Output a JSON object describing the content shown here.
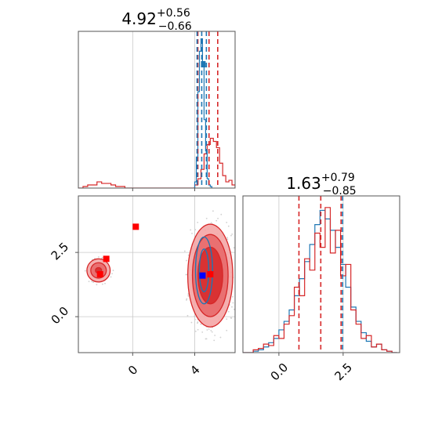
{
  "colors": {
    "red": "#d62728",
    "red_fill_light": "#f4a6a6",
    "red_fill_mid": "#e8696a",
    "blue": "#1f77b4",
    "marker_blue": "#0000ff",
    "marker_red": "#ff0000",
    "grid": "#c8c8c8",
    "frame": "#555555",
    "scatter": "#d0d0d0"
  },
  "chart_data": [
    {
      "type": "histogram",
      "panel": "top-left marginal",
      "title": {
        "base": "4.92",
        "upper": "+0.56",
        "lower": "−0.66"
      },
      "xlim": [
        -3.5,
        6.6
      ],
      "quantile_lines": {
        "red": [
          4.2,
          4.92,
          5.48
        ],
        "blue": [
          4.15,
          4.45,
          4.75
        ]
      },
      "series": [
        {
          "color": "red",
          "x": [
            -3.5,
            -3.2,
            -2.9,
            -2.6,
            -2.3,
            -2.0,
            -1.7,
            -1.4,
            -1.1,
            -0.8,
            -0.5,
            -0.2,
            0.1,
            0.4,
            0.7,
            1.0,
            1.3,
            1.6,
            1.9,
            2.2,
            2.5,
            2.8,
            3.1,
            3.4,
            3.7,
            4.0,
            4.2,
            4.4,
            4.6,
            4.8,
            5.0,
            5.2,
            5.4,
            5.6,
            5.8,
            6.0,
            6.2,
            6.4,
            6.6
          ],
          "y": [
            0,
            0.01,
            0.02,
            0.02,
            0.04,
            0.03,
            0.03,
            0.02,
            0.01,
            0.01,
            0,
            0,
            0,
            0,
            0,
            0,
            0,
            0,
            0,
            0,
            0,
            0,
            0,
            0,
            0,
            0.02,
            0.06,
            0.12,
            0.22,
            0.28,
            0.32,
            0.3,
            0.26,
            0.16,
            0.08,
            0.04,
            0.05,
            0.02,
            0
          ]
        },
        {
          "color": "blue",
          "x": [
            3.9,
            4.0,
            4.1,
            4.2,
            4.3,
            4.4,
            4.5,
            4.6,
            4.7,
            4.8,
            4.9,
            5.0,
            5.1
          ],
          "y": [
            0,
            0.04,
            0.2,
            0.62,
            0.88,
            0.96,
            0.78,
            0.44,
            0.24,
            0.06,
            0.02,
            0.01,
            0
          ]
        }
      ],
      "markers": [
        {
          "x": 4.55,
          "color": "blue"
        }
      ]
    },
    {
      "type": "histogram",
      "panel": "bottom-right marginal",
      "title": {
        "base": "1.63",
        "upper": "+0.79",
        "lower": "−0.85"
      },
      "xlim": [
        -1.4,
        4.7
      ],
      "xticks": [
        "0.0",
        "2.5"
      ],
      "xtick_values": [
        0.0,
        2.5
      ],
      "quantile_lines": {
        "red": [
          0.78,
          1.63,
          2.42
        ],
        "blue": [
          0.9,
          1.7,
          2.48
        ]
      },
      "series": [
        {
          "color": "blue",
          "x": [
            -1.4,
            -1.2,
            -1.0,
            -0.8,
            -0.6,
            -0.4,
            -0.2,
            0.0,
            0.2,
            0.4,
            0.6,
            0.8,
            1.0,
            1.2,
            1.4,
            1.6,
            1.8,
            2.0,
            2.2,
            2.4,
            2.6,
            2.8,
            3.0,
            3.2,
            3.4,
            3.6,
            3.8,
            4.0,
            4.2,
            4.4,
            4.6
          ],
          "y": [
            0,
            0,
            0.01,
            0.02,
            0.04,
            0.07,
            0.1,
            0.16,
            0.22,
            0.3,
            0.4,
            0.52,
            0.64,
            0.76,
            0.9,
            1.0,
            0.94,
            0.86,
            0.74,
            0.62,
            0.46,
            0.32,
            0.22,
            0.14,
            0.08,
            0.04,
            0.06,
            0.02,
            0.01,
            0,
            0
          ]
        },
        {
          "color": "red",
          "x": [
            -1.4,
            -1.2,
            -1.0,
            -0.8,
            -0.6,
            -0.4,
            -0.2,
            0.0,
            0.2,
            0.4,
            0.6,
            0.8,
            1.0,
            1.2,
            1.4,
            1.6,
            1.8,
            2.0,
            2.2,
            2.4,
            2.6,
            2.8,
            3.0,
            3.2,
            3.4,
            3.6,
            3.8,
            4.0,
            4.2,
            4.4,
            4.6
          ],
          "y": [
            0,
            0,
            0.02,
            0.03,
            0.06,
            0.05,
            0.12,
            0.1,
            0.2,
            0.26,
            0.46,
            0.4,
            0.66,
            0.58,
            0.84,
            0.74,
            1.02,
            0.7,
            0.86,
            0.54,
            0.62,
            0.3,
            0.2,
            0.1,
            0.12,
            0.04,
            0.06,
            0.02,
            0.01,
            0,
            0
          ]
        }
      ],
      "markers": [
        {
          "x": 1.63,
          "color": "red"
        }
      ]
    },
    {
      "type": "contour",
      "panel": "bottom-left joint",
      "xlim": [
        -3.5,
        6.6
      ],
      "ylim": [
        -1.4,
        4.7
      ],
      "xticks": [
        "0",
        "4"
      ],
      "xtick_values": [
        0,
        4
      ],
      "yticks": [
        "0.0",
        "2.5"
      ],
      "ytick_values": [
        0.0,
        2.5
      ],
      "red_regions": [
        {
          "cx": 5.0,
          "cy": 1.6,
          "rx": [
            1.45,
            1.15,
            0.8
          ],
          "ry": [
            4.0,
            3.2,
            2.2
          ]
        },
        {
          "cx": -2.2,
          "cy": 1.8,
          "rx": [
            0.75,
            0.5,
            0.2
          ],
          "ry": [
            0.9,
            0.6,
            0.22
          ]
        }
      ],
      "blue_region": {
        "cx": 4.6,
        "cy": 1.8,
        "rx": 0.55,
        "ry": 2.6
      },
      "points": [
        {
          "x": 4.5,
          "y": 1.6,
          "color": "marker_blue"
        },
        {
          "x": 5.0,
          "y": 1.65,
          "color": "marker_red"
        },
        {
          "x": 0.2,
          "y": 3.5,
          "color": "marker_red"
        },
        {
          "x": -1.7,
          "y": 2.25,
          "color": "marker_red"
        },
        {
          "x": -2.1,
          "y": 1.65,
          "color": "marker_red"
        }
      ]
    }
  ]
}
